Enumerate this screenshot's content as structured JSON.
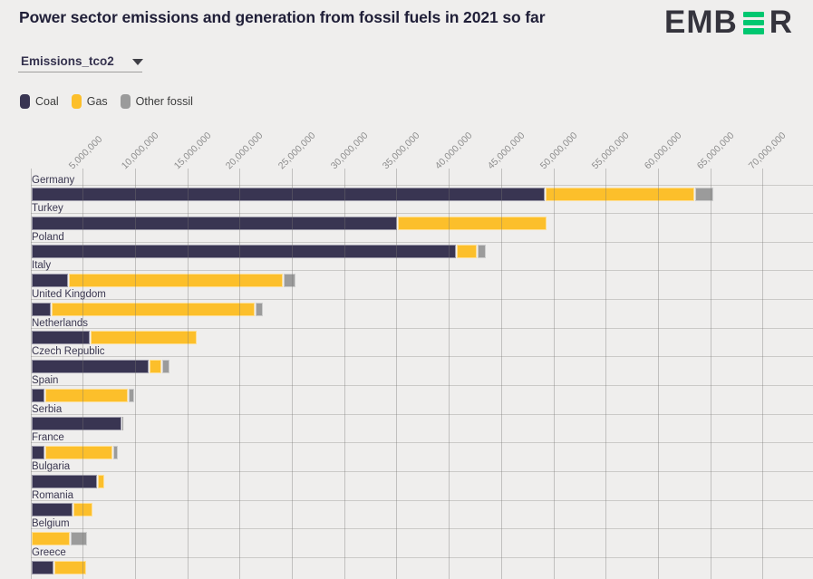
{
  "header": {
    "title": "Power sector emissions and generation from fossil fuels in 2021 so far",
    "logo": {
      "left": "EMB",
      "right": "R",
      "name": "EMBER",
      "green": "#00C770",
      "dark": "#35343D"
    }
  },
  "controls": {
    "metric_dropdown": {
      "value": "Emissions_tco2",
      "icon": "chevron-down-icon"
    }
  },
  "chart_data": {
    "type": "bar",
    "orientation": "horizontal",
    "stacked": true,
    "title": "Power sector emissions and generation from fossil fuels in 2021 so far",
    "selected_metric": "Emissions_tco2",
    "value_unit": "tCO2",
    "x_axis": {
      "min": 0,
      "tick_step": 5000000,
      "tick_labels": [
        "5,000,000",
        "10,000,000",
        "15,000,000",
        "20,000,000",
        "25,000,000",
        "30,000,000",
        "35,000,000",
        "40,000,000",
        "45,000,000",
        "50,000,000",
        "55,000,000",
        "60,000,000",
        "65,000,000",
        "70,000,000"
      ]
    },
    "legend": [
      {
        "label": "Coal",
        "color": "#393552"
      },
      {
        "label": "Gas",
        "color": "#FCBF2B"
      },
      {
        "label": "Other fossil",
        "color": "#9B9B9B"
      }
    ],
    "series_keys": [
      "coal",
      "gas",
      "other_fossil"
    ],
    "countries": [
      {
        "name": "Germany",
        "coal": 49100000,
        "gas": 14200000,
        "other_fossil": 1750000
      },
      {
        "name": "Turkey",
        "coal": 35000000,
        "gas": 14200000,
        "other_fossil": 0
      },
      {
        "name": "Poland",
        "coal": 40600000,
        "gas": 1900000,
        "other_fossil": 800000
      },
      {
        "name": "Italy",
        "coal": 3500000,
        "gas": 20500000,
        "other_fossil": 1100000
      },
      {
        "name": "United Kingdom",
        "coal": 1850000,
        "gas": 19450000,
        "other_fossil": 650000
      },
      {
        "name": "Netherlands",
        "coal": 5550000,
        "gas": 10200000,
        "other_fossil": 0
      },
      {
        "name": "Czech Republic",
        "coal": 11200000,
        "gas": 1150000,
        "other_fossil": 700000
      },
      {
        "name": "Spain",
        "coal": 1250000,
        "gas": 7900000,
        "other_fossil": 500000
      },
      {
        "name": "Serbia",
        "coal": 8600000,
        "gas": 0,
        "other_fossil": 150000
      },
      {
        "name": "France",
        "coal": 1250000,
        "gas": 6400000,
        "other_fossil": 450000
      },
      {
        "name": "Bulgaria",
        "coal": 6300000,
        "gas": 600000,
        "other_fossil": 0
      },
      {
        "name": "Romania",
        "coal": 3950000,
        "gas": 1800000,
        "other_fossil": 0
      },
      {
        "name": "Belgium",
        "coal": 0,
        "gas": 3700000,
        "other_fossil": 1550000
      },
      {
        "name": "Greece",
        "coal": 2150000,
        "gas": 3000000,
        "other_fossil": 0
      }
    ]
  },
  "colors": {
    "background": "#EFEEED",
    "gridline": "#BFBEBD",
    "row_line": "#CBCAC8",
    "title_text": "#201F38",
    "axis_text": "#8D8D8D",
    "label_text": "#3A3750"
  }
}
